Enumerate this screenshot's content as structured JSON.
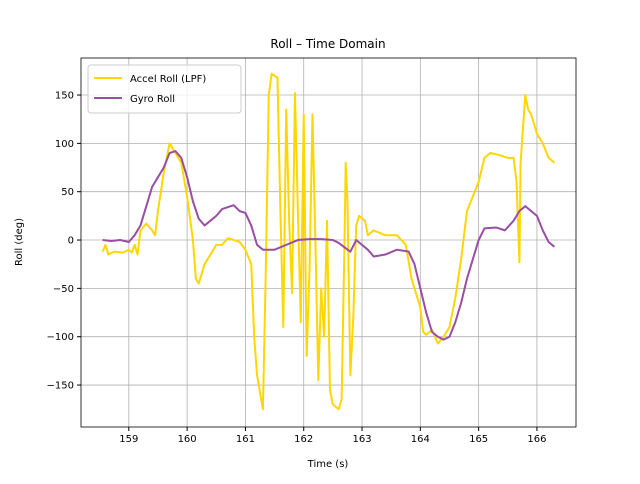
{
  "chart_data": {
    "type": "line",
    "title": "Roll – Time Domain",
    "x_label": "Time (s)",
    "y_label": "Roll (deg)",
    "xlim": [
      158.18,
      166.67
    ],
    "ylim": [
      -193.4,
      188.3
    ],
    "xticks": [
      159,
      160,
      161,
      162,
      163,
      164,
      165,
      166
    ],
    "yticks": [
      -150,
      -100,
      -50,
      0,
      50,
      100,
      150
    ],
    "grid": true,
    "legend": "upper-left",
    "series": [
      {
        "name": "Accel Roll (LPF)",
        "color": "#ffd700",
        "x": [
          158.55,
          158.6,
          158.65,
          158.75,
          158.9,
          159.0,
          159.05,
          159.1,
          159.15,
          159.2,
          159.3,
          159.4,
          159.45,
          159.5,
          159.6,
          159.7,
          159.8,
          159.9,
          160.0,
          160.1,
          160.15,
          160.2,
          160.3,
          160.4,
          160.5,
          160.6,
          160.7,
          160.8,
          160.9,
          161.0,
          161.1,
          161.15,
          161.2,
          161.3,
          161.35,
          161.4,
          161.45,
          161.55,
          161.6,
          161.65,
          161.7,
          161.75,
          161.8,
          161.85,
          161.9,
          161.95,
          162.0,
          162.05,
          162.1,
          162.15,
          162.2,
          162.25,
          162.3,
          162.35,
          162.4,
          162.45,
          162.5,
          162.6,
          162.65,
          162.7,
          162.72,
          162.75,
          162.8,
          162.85,
          162.9,
          162.95,
          163.05,
          163.1,
          163.2,
          163.4,
          163.6,
          163.75,
          163.85,
          164.0,
          164.05,
          164.1,
          164.2,
          164.3,
          164.4,
          164.5,
          164.6,
          164.7,
          164.8,
          164.9,
          165.0,
          165.1,
          165.2,
          165.35,
          165.5,
          165.6,
          165.65,
          165.7,
          165.72,
          165.8,
          165.85,
          165.9,
          166.0,
          166.1,
          166.2,
          166.3
        ],
        "values": [
          -12,
          -5,
          -15,
          -12,
          -13,
          -10,
          -13,
          -5,
          -15,
          10,
          17,
          10,
          5,
          30,
          70,
          100,
          90,
          80,
          45,
          0,
          -40,
          -45,
          -25,
          -15,
          -5,
          -5,
          2,
          0,
          -2,
          -10,
          -25,
          -100,
          -140,
          -175,
          -30,
          150,
          172,
          168,
          30,
          -90,
          135,
          20,
          -55,
          152,
          30,
          -85,
          130,
          -120,
          -30,
          130,
          0,
          -145,
          -50,
          -100,
          20,
          -155,
          -170,
          -175,
          -165,
          0,
          80,
          40,
          -140,
          -80,
          15,
          25,
          20,
          5,
          10,
          5,
          5,
          -5,
          -40,
          -70,
          -95,
          -98,
          -93,
          -107,
          -100,
          -90,
          -60,
          -20,
          30,
          45,
          60,
          85,
          90,
          88,
          85,
          85,
          60,
          -23,
          80,
          150,
          135,
          130,
          110,
          100,
          85,
          80
        ]
      },
      {
        "name": "Gyro Roll",
        "color": "#984ea3",
        "x": [
          158.55,
          158.7,
          158.85,
          159.0,
          159.1,
          159.2,
          159.3,
          159.4,
          159.5,
          159.6,
          159.7,
          159.8,
          159.9,
          160.0,
          160.1,
          160.2,
          160.3,
          160.4,
          160.5,
          160.6,
          160.8,
          160.9,
          161.0,
          161.1,
          161.2,
          161.3,
          161.5,
          161.7,
          161.9,
          162.1,
          162.3,
          162.5,
          162.6,
          162.8,
          162.9,
          163.0,
          163.1,
          163.2,
          163.4,
          163.6,
          163.8,
          163.9,
          164.0,
          164.1,
          164.2,
          164.3,
          164.4,
          164.5,
          164.6,
          164.7,
          164.8,
          164.9,
          165.0,
          165.1,
          165.3,
          165.45,
          165.6,
          165.7,
          165.8,
          165.9,
          166.0,
          166.1,
          166.2,
          166.3
        ],
        "values": [
          0,
          -1,
          0,
          -2,
          5,
          15,
          35,
          55,
          65,
          75,
          90,
          92,
          85,
          65,
          40,
          22,
          15,
          20,
          25,
          32,
          36,
          30,
          28,
          15,
          -5,
          -10,
          -10,
          -5,
          0,
          1,
          1,
          0,
          -3,
          -12,
          0,
          -5,
          -10,
          -17,
          -15,
          -10,
          -12,
          -25,
          -50,
          -75,
          -95,
          -100,
          -103,
          -100,
          -85,
          -65,
          -40,
          -20,
          0,
          12,
          13,
          10,
          20,
          30,
          35,
          30,
          25,
          10,
          -2,
          -7
        ]
      }
    ]
  }
}
